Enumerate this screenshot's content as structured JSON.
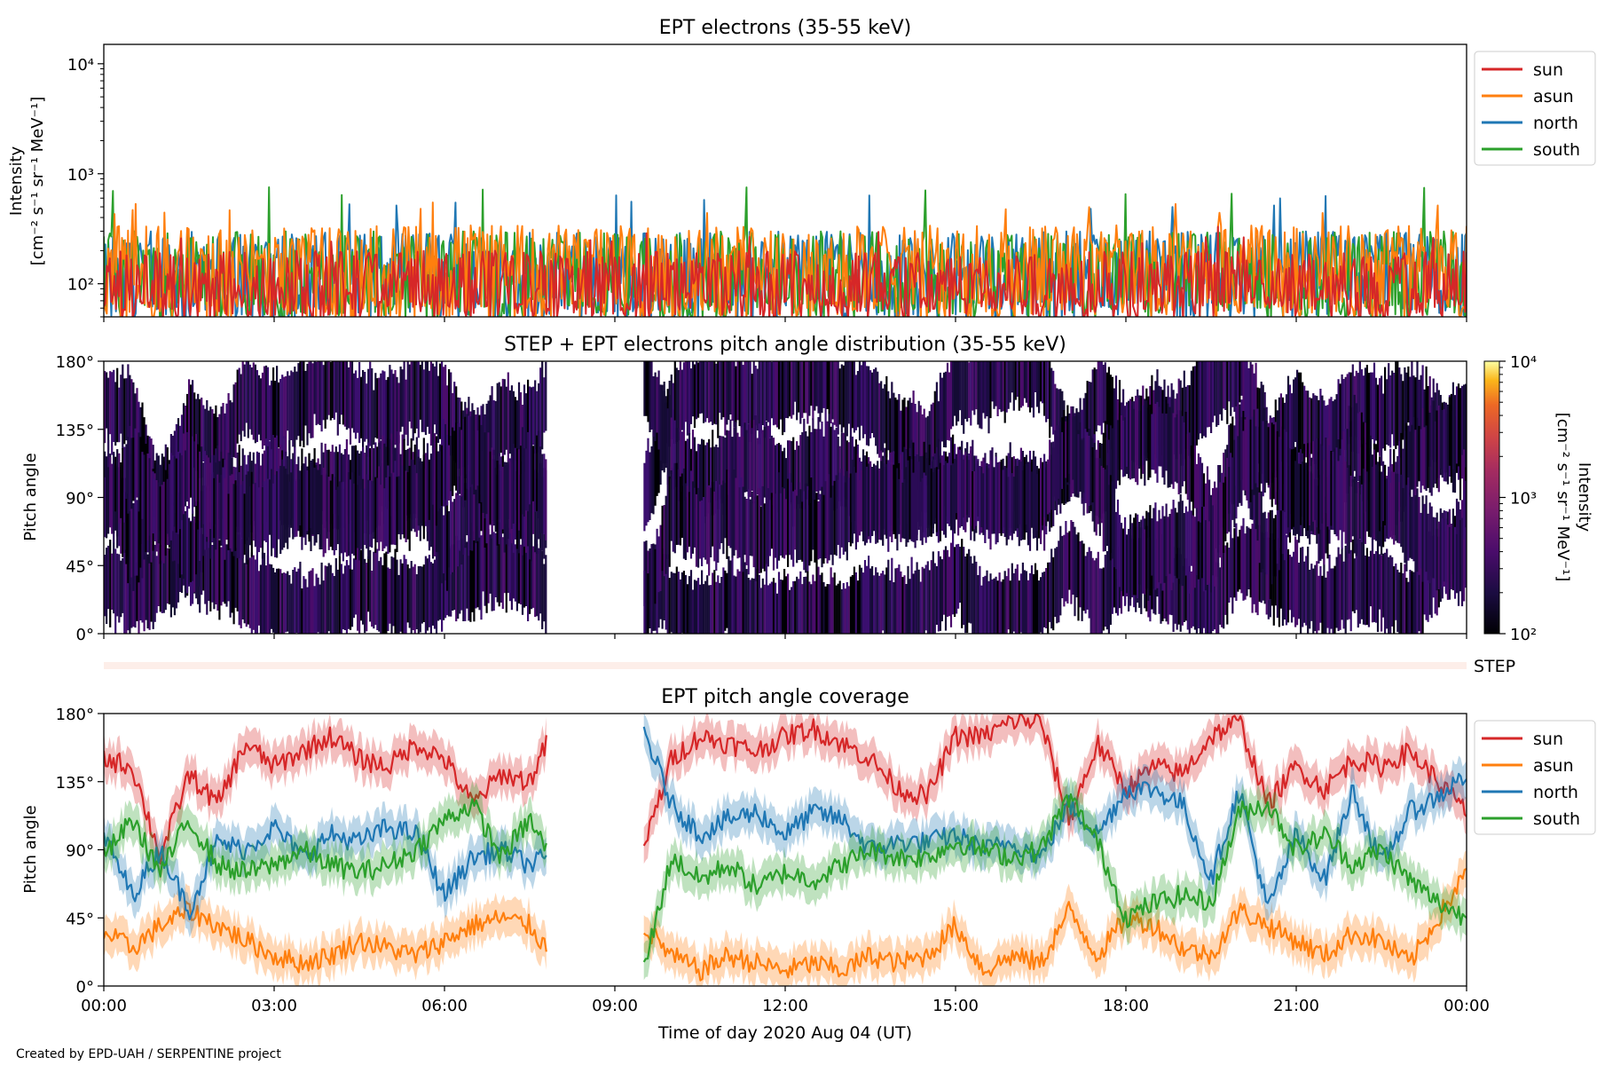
{
  "footer": "Created by EPD-UAH / SERPENTINE project",
  "xaxis": {
    "label": "Time of day 2020 Aug 04 (UT)",
    "ticks": [
      "00:00",
      "03:00",
      "06:00",
      "09:00",
      "12:00",
      "15:00",
      "18:00",
      "21:00",
      "00:00"
    ]
  },
  "colors": {
    "sun": "#d62728",
    "asun": "#ff7f0e",
    "north": "#1f77b4",
    "south": "#2ca02c"
  },
  "chart_data": [
    {
      "type": "line",
      "title": "EPT electrons (35-55 keV)",
      "ylabel_lines": [
        "Intensity",
        "[cm⁻² s⁻¹ sr⁻¹ MeV⁻¹]"
      ],
      "yscale": "log",
      "ylim": [
        50,
        15000
      ],
      "ytick_labels": [
        "10²",
        "10³",
        "10⁴"
      ],
      "xlim_hours": [
        0,
        24
      ],
      "legend": [
        "sun",
        "asun",
        "north",
        "south"
      ],
      "legend_placement": "outside-top-right",
      "series": [
        {
          "name": "north",
          "typical": 150,
          "max": 650
        },
        {
          "name": "south",
          "typical": 150,
          "max": 840
        },
        {
          "name": "asun",
          "typical": 170,
          "max": 560
        },
        {
          "name": "sun",
          "typical": 100,
          "max": 330
        }
      ]
    },
    {
      "type": "heatmap",
      "title": "STEP + EPT electrons pitch angle distribution (35-55 keV)",
      "ylabel": "Pitch angle",
      "ylim": [
        0,
        180
      ],
      "ytick_labels": [
        "0°",
        "45°",
        "90°",
        "135°",
        "180°"
      ],
      "xlim_hours": [
        0,
        24
      ],
      "data_gap_hours": [
        7.8,
        9.5
      ],
      "colorbar": {
        "scale": "log",
        "range": [
          100,
          10000
        ],
        "tick_labels": [
          "10²",
          "10³",
          "10⁴"
        ],
        "label_lines": [
          "Intensity",
          "[cm⁻² s⁻¹ sr⁻¹ MeV⁻¹]"
        ]
      },
      "step_label": "STEP"
    },
    {
      "type": "line",
      "title": "EPT pitch angle coverage",
      "ylabel": "Pitch angle",
      "ylim": [
        0,
        180
      ],
      "ytick_labels": [
        "0°",
        "45°",
        "90°",
        "135°",
        "180°"
      ],
      "xlim_hours": [
        0,
        24
      ],
      "data_gap_hours": [
        7.8,
        9.5
      ],
      "legend": [
        "sun",
        "asun",
        "north",
        "south"
      ],
      "legend_placement": "outside-top-right",
      "x": [
        0,
        0.5,
        1,
        1.5,
        2,
        2.5,
        3,
        3.5,
        4,
        4.5,
        5,
        5.5,
        6,
        6.5,
        7,
        7.5,
        7.8,
        9.5,
        10,
        10.5,
        11,
        11.5,
        12,
        12.5,
        13,
        13.5,
        14,
        14.5,
        15,
        15.5,
        16,
        16.5,
        17,
        17.5,
        18,
        18.5,
        19,
        19.5,
        20,
        20.5,
        21,
        21.5,
        22,
        22.5,
        23,
        23.5,
        24
      ],
      "series": [
        {
          "name": "sun",
          "values": [
            150,
            145,
            85,
            140,
            120,
            160,
            145,
            155,
            165,
            150,
            145,
            160,
            150,
            120,
            140,
            135,
            160,
            90,
            150,
            165,
            160,
            155,
            165,
            170,
            160,
            150,
            130,
            125,
            165,
            165,
            175,
            175,
            110,
            160,
            130,
            145,
            140,
            165,
            175,
            120,
            145,
            130,
            150,
            145,
            155,
            135,
            115
          ]
        },
        {
          "name": "asun",
          "values": [
            35,
            25,
            40,
            50,
            40,
            30,
            20,
            15,
            20,
            30,
            25,
            20,
            30,
            40,
            45,
            40,
            25,
            40,
            20,
            10,
            20,
            15,
            10,
            15,
            10,
            20,
            15,
            20,
            40,
            10,
            20,
            15,
            50,
            20,
            45,
            40,
            25,
            20,
            50,
            40,
            30,
            20,
            35,
            30,
            15,
            45,
            75
          ]
        },
        {
          "name": "north",
          "values": [
            100,
            60,
            90,
            50,
            95,
            90,
            105,
            85,
            100,
            95,
            105,
            100,
            60,
            85,
            90,
            80,
            85,
            170,
            120,
            100,
            110,
            115,
            100,
            115,
            110,
            90,
            95,
            95,
            100,
            90,
            95,
            85,
            120,
            100,
            130,
            130,
            120,
            70,
            130,
            50,
            100,
            70,
            130,
            80,
            115,
            125,
            140
          ]
        },
        {
          "name": "south",
          "values": [
            85,
            110,
            75,
            110,
            80,
            75,
            80,
            90,
            80,
            75,
            80,
            90,
            110,
            120,
            85,
            110,
            90,
            10,
            85,
            70,
            80,
            65,
            75,
            70,
            80,
            90,
            85,
            85,
            95,
            90,
            85,
            90,
            125,
            95,
            45,
            55,
            60,
            55,
            115,
            120,
            90,
            100,
            80,
            90,
            70,
            55,
            45
          ]
        }
      ]
    }
  ]
}
